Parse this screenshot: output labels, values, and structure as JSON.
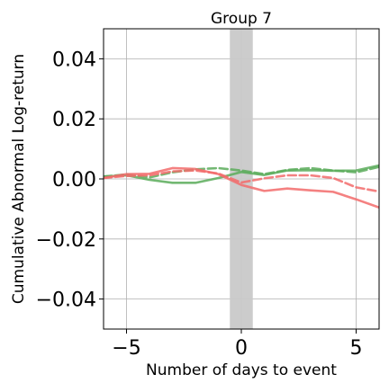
{
  "chart_data": {
    "type": "line",
    "title": "Group 7",
    "xlabel": "Number of days to event",
    "ylabel": "Cumulative Abnormal Log-return",
    "xlim": [
      -6,
      6
    ],
    "ylim": [
      -0.05,
      0.05
    ],
    "x_ticks": [
      -5,
      0,
      5
    ],
    "x_tick_labels": [
      "−5",
      "0",
      "5"
    ],
    "y_ticks": [
      -0.04,
      -0.02,
      0.0,
      0.02,
      0.04
    ],
    "y_tick_labels": [
      "−0.04",
      "−0.02",
      "0.00",
      "0.02",
      "0.04"
    ],
    "grid": true,
    "legend": "none",
    "event_window": [
      -0.5,
      0.5
    ],
    "event_window_color": "#c9c9c9",
    "series": [
      {
        "color": "#5aac5a",
        "style": "solid",
        "x": [
          -6,
          -5,
          -4,
          -3,
          -2,
          -1,
          0,
          1,
          2,
          3,
          4,
          5,
          6
        ],
        "y": [
          0.0008,
          0.0012,
          -0.0003,
          -0.0013,
          -0.0013,
          0.0003,
          0.0023,
          0.0013,
          0.0028,
          0.0029,
          0.0027,
          0.0028,
          0.0045
        ]
      },
      {
        "color": "#5aac5a",
        "style": "dashed",
        "x": [
          -6,
          -5,
          -4,
          -3,
          -2,
          -1,
          0,
          1,
          2,
          3,
          4,
          5,
          6
        ],
        "y": [
          0.0008,
          0.0015,
          0.0005,
          0.0022,
          0.0032,
          0.0036,
          0.0028,
          0.0016,
          0.003,
          0.0036,
          0.0028,
          0.0022,
          0.004
        ]
      },
      {
        "color": "#f26b6b",
        "style": "solid",
        "x": [
          -6,
          -5,
          -4,
          -3,
          -2,
          -1,
          0,
          1,
          2,
          3,
          4,
          5,
          6
        ],
        "y": [
          0.0003,
          0.0016,
          0.0017,
          0.0036,
          0.0033,
          0.0016,
          -0.002,
          -0.004,
          -0.0032,
          -0.0038,
          -0.0043,
          -0.0068,
          -0.0095
        ]
      },
      {
        "color": "#f26b6b",
        "style": "dashed",
        "x": [
          -6,
          -5,
          -4,
          -3,
          -2,
          -1,
          0,
          1,
          2,
          3,
          4,
          5,
          6
        ],
        "y": [
          0.0003,
          0.001,
          0.0012,
          0.0025,
          0.0028,
          0.0018,
          -0.0012,
          0.0002,
          0.0012,
          0.0012,
          0.0003,
          -0.0028,
          -0.0042
        ]
      }
    ]
  }
}
